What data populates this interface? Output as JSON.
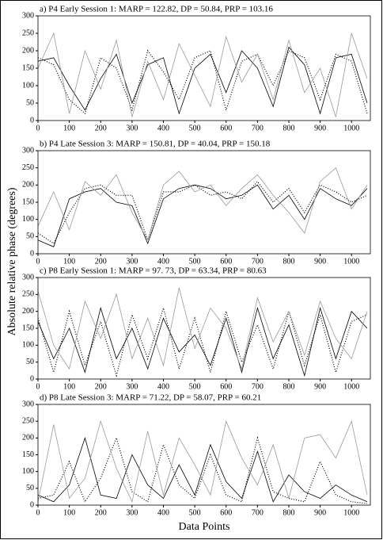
{
  "chart_data": [
    {
      "type": "line",
      "title": "a) P4 Early Session 1: MARP = 122.82, DP = 50.84, PRP = 103.16",
      "ylabel": "Absolute relative phase (degrees)",
      "x": [
        0,
        50,
        100,
        150,
        200,
        250,
        300,
        350,
        400,
        450,
        500,
        550,
        600,
        650,
        700,
        750,
        800,
        850,
        900,
        950,
        1000,
        1050
      ],
      "series": [
        {
          "color": "#000000",
          "style": "dotted",
          "values": [
            180,
            160,
            60,
            20,
            180,
            150,
            30,
            200,
            140,
            60,
            180,
            200,
            30,
            170,
            190,
            100,
            200,
            180,
            60,
            190,
            170,
            20
          ]
        },
        {
          "color": "#000000",
          "style": "solid",
          "values": [
            170,
            180,
            100,
            30,
            120,
            190,
            50,
            160,
            180,
            20,
            150,
            190,
            80,
            200,
            150,
            40,
            210,
            160,
            20,
            180,
            190,
            50
          ]
        },
        {
          "color": "#999999",
          "style": "solid",
          "values": [
            150,
            250,
            20,
            200,
            90,
            230,
            10,
            170,
            60,
            220,
            130,
            40,
            240,
            110,
            190,
            60,
            230,
            80,
            150,
            10,
            250,
            120
          ]
        }
      ],
      "xlim": [
        0,
        1060
      ],
      "ylim": [
        0,
        300
      ],
      "xticks": [
        0,
        100,
        200,
        300,
        400,
        500,
        600,
        700,
        800,
        900,
        1000
      ],
      "yticks": [
        0,
        50,
        100,
        150,
        200,
        250,
        300
      ]
    },
    {
      "type": "line",
      "title": "b) P4 Late Session 3: MARP = 150.81, DP =  40.04, PRP = 150.18",
      "x": [
        0,
        50,
        100,
        150,
        200,
        250,
        300,
        350,
        400,
        450,
        500,
        550,
        600,
        650,
        700,
        750,
        800,
        850,
        900,
        950,
        1000,
        1050
      ],
      "series": [
        {
          "color": "#000000",
          "style": "dotted",
          "values": [
            60,
            30,
            120,
            190,
            200,
            170,
            170,
            40,
            180,
            180,
            200,
            170,
            180,
            160,
            210,
            150,
            190,
            120,
            200,
            180,
            150,
            170
          ]
        },
        {
          "color": "#000000",
          "style": "solid",
          "values": [
            40,
            20,
            160,
            180,
            190,
            150,
            140,
            30,
            160,
            190,
            200,
            190,
            160,
            170,
            200,
            130,
            170,
            100,
            190,
            160,
            140,
            190
          ]
        },
        {
          "color": "#999999",
          "style": "solid",
          "values": [
            80,
            180,
            70,
            210,
            170,
            230,
            120,
            40,
            200,
            240,
            180,
            200,
            140,
            190,
            230,
            170,
            120,
            60,
            210,
            250,
            130,
            200
          ]
        }
      ],
      "xlim": [
        0,
        1060
      ],
      "ylim": [
        0,
        300
      ],
      "xticks": [
        0,
        100,
        200,
        300,
        400,
        500,
        600,
        700,
        800,
        900,
        1000
      ],
      "yticks": [
        0,
        50,
        100,
        150,
        200,
        250,
        300
      ]
    },
    {
      "type": "line",
      "title": "c) P8 Early Session 1: MARP = 97. 73, DP = 63.34, PRP = 80.63",
      "x": [
        0,
        50,
        100,
        150,
        200,
        250,
        300,
        350,
        400,
        450,
        500,
        550,
        600,
        650,
        700,
        750,
        800,
        850,
        900,
        950,
        1000,
        1050
      ],
      "series": [
        {
          "color": "#000000",
          "style": "dotted",
          "values": [
            180,
            20,
            200,
            40,
            170,
            10,
            190,
            60,
            210,
            30,
            180,
            20,
            200,
            50,
            160,
            30,
            200,
            40,
            190,
            20,
            170,
            190
          ]
        },
        {
          "color": "#000000",
          "style": "solid",
          "values": [
            170,
            60,
            150,
            20,
            210,
            60,
            150,
            30,
            180,
            80,
            130,
            40,
            180,
            20,
            210,
            60,
            160,
            10,
            210,
            60,
            200,
            150
          ]
        },
        {
          "color": "#999999",
          "style": "solid",
          "values": [
            260,
            100,
            30,
            230,
            120,
            250,
            60,
            180,
            40,
            270,
            90,
            210,
            150,
            30,
            240,
            110,
            200,
            70,
            230,
            120,
            60,
            200
          ]
        }
      ],
      "xlim": [
        0,
        1060
      ],
      "ylim": [
        0,
        300
      ],
      "xticks": [
        0,
        100,
        200,
        300,
        400,
        500,
        600,
        700,
        800,
        900,
        1000
      ],
      "yticks": [
        0,
        50,
        100,
        150,
        200,
        250,
        300
      ]
    },
    {
      "type": "line",
      "title": "d) P8 Late Session 3: MARP = 71.22, DP = 58.07, PRP = 60.21",
      "xlabel": "Data Points",
      "x": [
        0,
        50,
        100,
        150,
        200,
        250,
        300,
        350,
        400,
        450,
        500,
        550,
        600,
        650,
        700,
        750,
        800,
        850,
        900,
        950,
        1000,
        1050
      ],
      "series": [
        {
          "color": "#000000",
          "style": "dotted",
          "values": [
            20,
            30,
            130,
            10,
            80,
            200,
            40,
            10,
            180,
            60,
            20,
            150,
            30,
            10,
            200,
            40,
            20,
            10,
            130,
            30,
            10,
            5
          ]
        },
        {
          "color": "#000000",
          "style": "solid",
          "values": [
            30,
            10,
            60,
            200,
            30,
            20,
            150,
            60,
            20,
            120,
            30,
            180,
            70,
            20,
            160,
            10,
            90,
            40,
            20,
            60,
            30,
            10
          ]
        },
        {
          "color": "#999999",
          "style": "solid",
          "values": [
            10,
            240,
            20,
            80,
            250,
            110,
            10,
            220,
            30,
            200,
            120,
            30,
            250,
            140,
            60,
            180,
            20,
            200,
            210,
            140,
            250,
            30
          ]
        }
      ],
      "xlim": [
        0,
        1060
      ],
      "ylim": [
        0,
        300
      ],
      "xticks": [
        0,
        100,
        200,
        300,
        400,
        500,
        600,
        700,
        800,
        900,
        1000
      ],
      "yticks": [
        0,
        50,
        100,
        150,
        200,
        250,
        300
      ]
    }
  ]
}
